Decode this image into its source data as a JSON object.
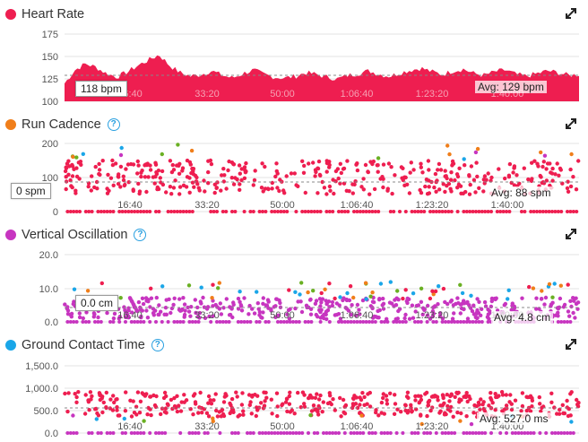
{
  "colors": {
    "hr": "#ee1e50",
    "cadence_dot": "#f07e1a",
    "vo_dot": "#c735c0",
    "gct_dot": "#1aa6e8",
    "green": "#6ab023",
    "blue": "#1aa6e8",
    "orange": "#f07e1a",
    "purple": "#c735c0",
    "red": "#ee1e50"
  },
  "icons": {
    "expand": "expand-icon",
    "help": "help-icon"
  },
  "x_ticks": [
    "16:40",
    "33:20",
    "50:00",
    "1:06:40",
    "1:23:20",
    "1:40:00"
  ],
  "heart_rate": {
    "title": "Heart Rate",
    "y_ticks": [
      "175",
      "150",
      "125",
      "100"
    ],
    "tooltip": "118 bpm",
    "avg": "Avg: 129 bpm"
  },
  "run_cadence": {
    "title": "Run Cadence",
    "y_ticks": [
      "200",
      "100",
      "0"
    ],
    "tooltip": "0 spm",
    "avg": "Avg: 88 spm"
  },
  "vertical_oscillation": {
    "title": "Vertical Oscillation",
    "y_ticks": [
      "20.0",
      "10.0",
      "0.0"
    ],
    "tooltip": "0.0 cm",
    "avg": "Avg: 4.8 cm"
  },
  "ground_contact_time": {
    "title": "Ground Contact Time",
    "y_ticks": [
      "1,500.0",
      "1,000.0",
      "500.0",
      "0.0"
    ],
    "avg": "Avg: 527.0 ms"
  },
  "chart_data": [
    {
      "type": "area",
      "title": "Heart Rate",
      "ylim": [
        100,
        175
      ],
      "avg": 129,
      "series": [
        {
          "name": "Heart Rate",
          "values": [
            120,
            135,
            142,
            138,
            131,
            127,
            133,
            140,
            146,
            152,
            140,
            132,
            128,
            130,
            134,
            129,
            126,
            131,
            135,
            130,
            127,
            126,
            128,
            132,
            130,
            127,
            125,
            129,
            131,
            134,
            130,
            128,
            132,
            135,
            137,
            133,
            130,
            134,
            136,
            131,
            129,
            133,
            135,
            130,
            128,
            131,
            134,
            132,
            129,
            130
          ]
        }
      ]
    },
    {
      "type": "scatter",
      "title": "Run Cadence",
      "ylim": [
        0,
        200
      ],
      "avg": 88
    },
    {
      "type": "scatter",
      "title": "Vertical Oscillation",
      "ylim": [
        0,
        20
      ],
      "avg": 4.8
    },
    {
      "type": "scatter",
      "title": "Ground Contact Time",
      "ylim": [
        0,
        1500
      ],
      "avg": 527.0
    }
  ]
}
